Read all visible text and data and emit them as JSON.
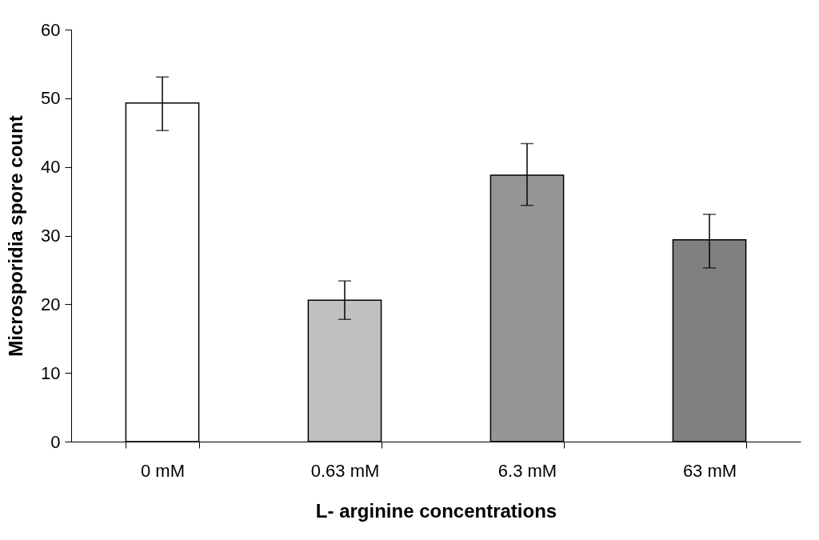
{
  "chart_data": {
    "type": "bar",
    "xlabel": "L- arginine concentrations",
    "ylabel": "Microsporidia spore count",
    "categories": [
      "0 mM",
      "0.63 mM",
      "6.3 mM",
      "63 mM"
    ],
    "values": [
      49.3,
      20.6,
      38.8,
      29.4
    ],
    "colors": [
      "#ffffff",
      "#c0c0c0",
      "#969696",
      "#808080"
    ],
    "errors": [
      [
        45.3,
        53.1
      ],
      [
        17.8,
        23.4
      ],
      [
        34.4,
        43.4
      ],
      [
        25.3,
        33.1
      ]
    ],
    "ylim": [
      0,
      60
    ],
    "yticks": [
      0,
      10,
      20,
      30,
      40,
      50,
      60
    ],
    "grid": false,
    "legend": false
  }
}
